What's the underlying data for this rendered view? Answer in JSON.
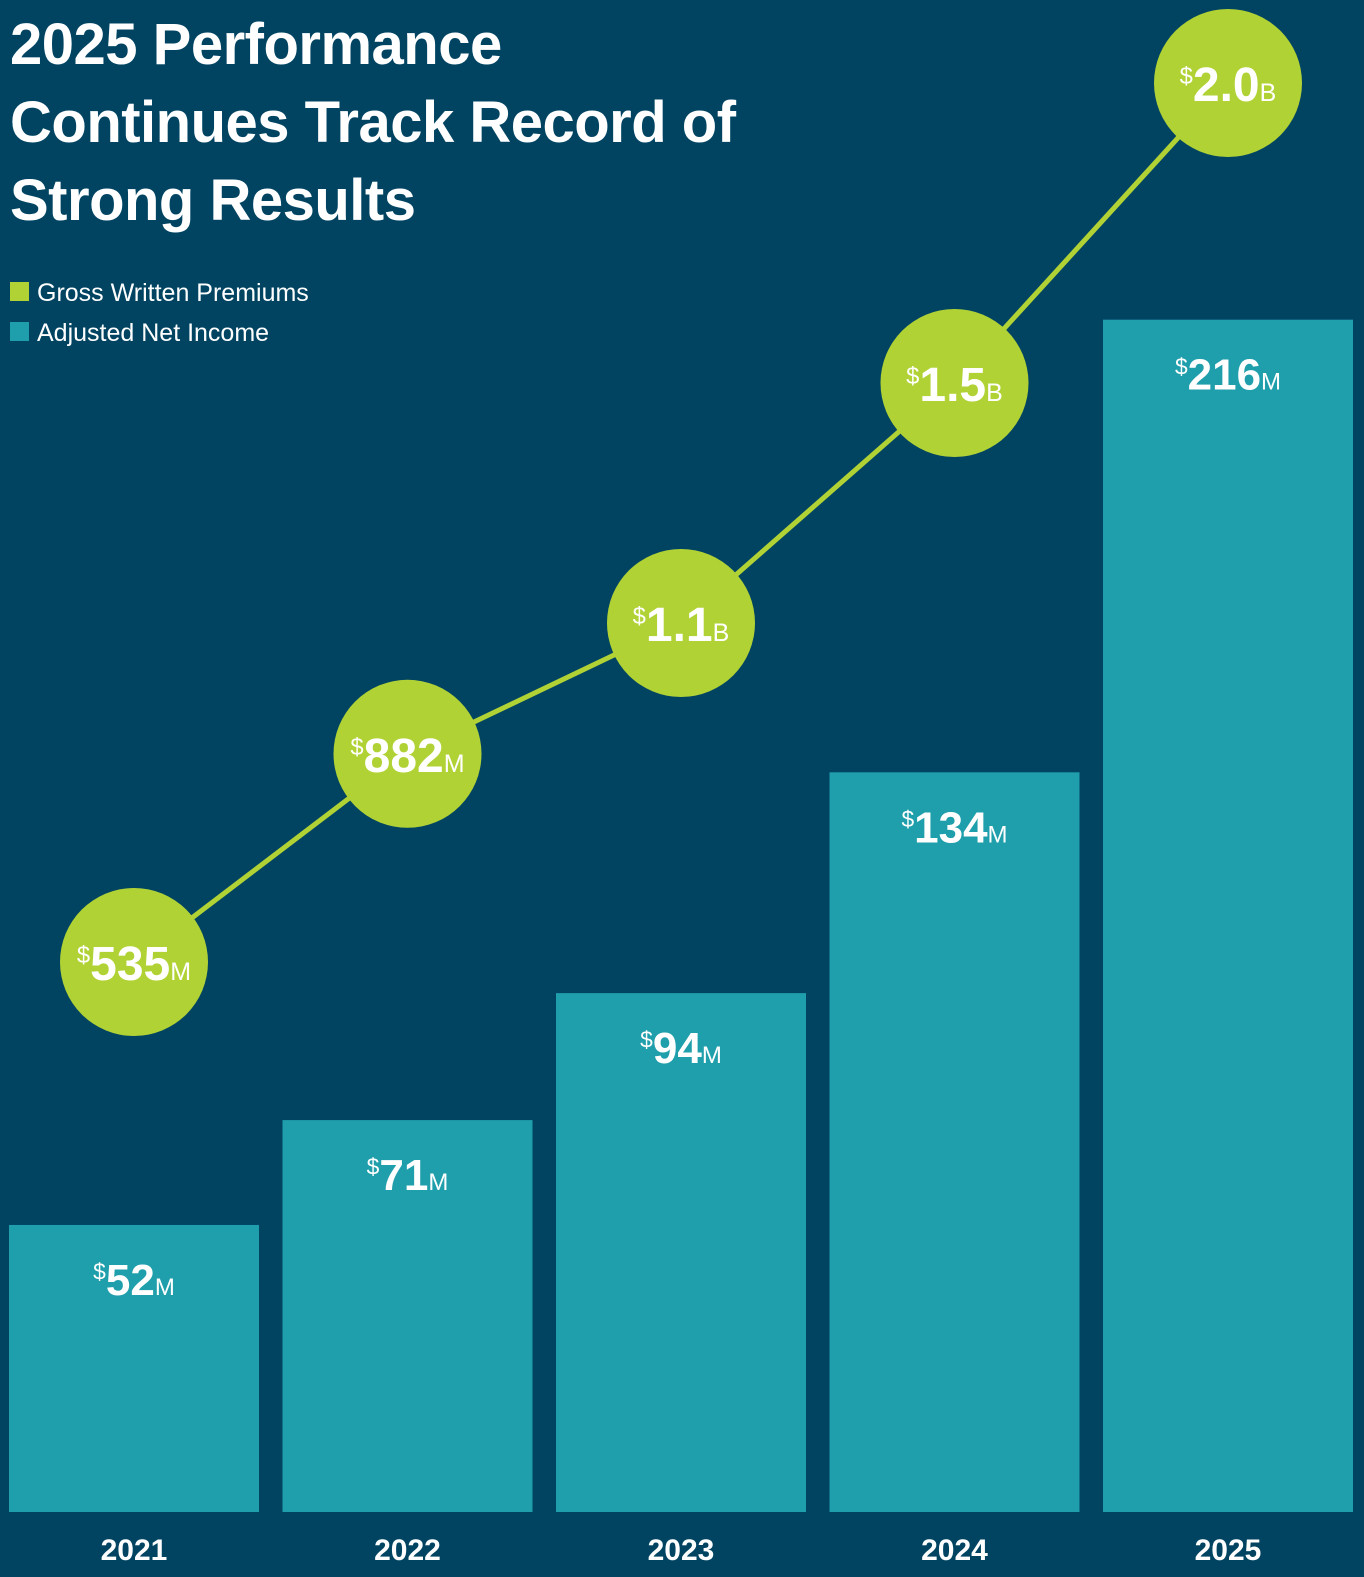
{
  "chart_data": {
    "type": "bar-line",
    "title": "2025 Performance Continues Track Record of Strong Results",
    "categories": [
      "2021",
      "2022",
      "2023",
      "2024",
      "2025"
    ],
    "series": [
      {
        "name": "Gross Written Premiums",
        "type": "line",
        "color": "#b1d235",
        "values": [
          535,
          882,
          1100,
          1500,
          2000
        ],
        "value_labels": [
          "$535M",
          "$882M",
          "$1.1B",
          "$1.5B",
          "$2.0B"
        ]
      },
      {
        "name": "Adjusted Net Income",
        "type": "bar",
        "color": "#1f9eab",
        "values": [
          52,
          71,
          94,
          134,
          216
        ],
        "value_labels": [
          "$52M",
          "$71M",
          "$94M",
          "$134M",
          "$216M"
        ]
      }
    ],
    "legend": "top-left"
  }
}
